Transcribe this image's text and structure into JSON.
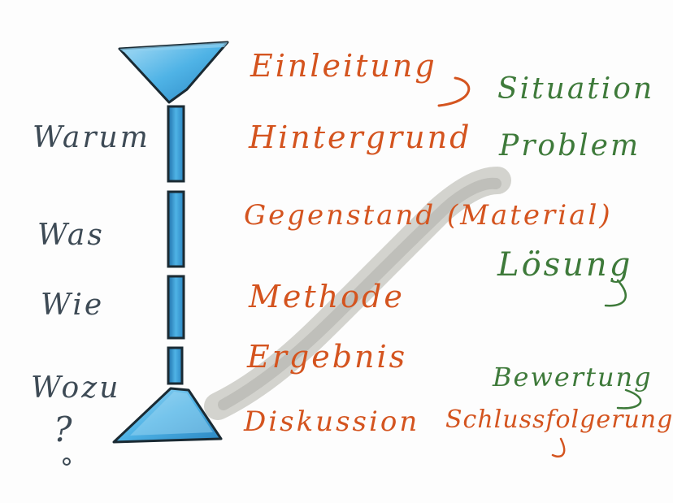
{
  "colors": {
    "left_text": "#3d4a55",
    "middle_text": "#d4541f",
    "right_text": "#3e7a3a",
    "hourglass_blue": "#4fb3e6",
    "hourglass_outline": "#1a2a33",
    "smudge_gray": "#b9b9b3"
  },
  "left_questions": {
    "warum": "Warum",
    "was": "Was",
    "wie": "Wie",
    "wozu": "Wozu",
    "question_mark": "?"
  },
  "middle_sections": {
    "einleitung": "Einleitung",
    "hintergrund": "Hintergrund",
    "gegenstand": "Gegenstand (Material)",
    "methode": "Methode",
    "ergebnis": "Ergebnis",
    "diskussion": "Diskussion",
    "schlussfolgerung": "Schlussfolgerung"
  },
  "right_notes": {
    "situation": "Situation",
    "problem": "Problem",
    "loesung": "Lösung",
    "bewertung": "Bewertung"
  },
  "icons": {
    "hourglass": "hourglass-icon",
    "diagonal_smudge": "gray-smudge-stroke"
  }
}
